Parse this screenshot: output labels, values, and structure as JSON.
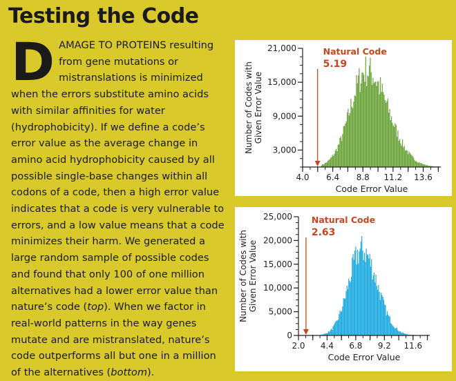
{
  "title": "Testing the Code",
  "article": {
    "dropcap": "D",
    "lead": "AMAGE TO PROTEINS resulting from gene mutations or mistranslations is minimized when the errors substitute amino acids with similar affinities for water (hydrophobicity). If we define a code’s error value as the average change in amino acid hydrophobicity caused by all possible single-base changes within all codons of a code, then a high error value indicates that a code is very vulnerable to errors, and a low value means that a code minimizes their harm. We generated a large random sample of possible codes and found that only 100 of one million alternatives had a lower error value than nature’s code (",
    "em1": "top",
    "mid": "). When we factor in real-world patterns in the way genes mutate and are mistranslated, nature’s code outperforms all but one in a million of the alternatives (",
    "em2": "bottom",
    "end": ")."
  },
  "colors": {
    "top_bars": "#6aa33a",
    "bottom_bars": "#1aa9df",
    "marker": "#c8461e"
  },
  "chart_data": [
    {
      "type": "bar",
      "xlabel": "Code Error Value",
      "ylabel": [
        "Number of Codes with",
        "Given Error Value"
      ],
      "xlim": [
        4.0,
        15.0
      ],
      "ylim": [
        0,
        21000
      ],
      "xticks": [
        "4.0",
        "6.4",
        "8.8",
        "11.2",
        "13.6"
      ],
      "xtick_values": [
        4.0,
        6.4,
        8.8,
        11.2,
        13.6
      ],
      "yticks": [
        "3,000",
        "9,000",
        "15,000",
        "21,000"
      ],
      "ytick_values": [
        3000,
        9000,
        15000,
        21000
      ],
      "distribution": {
        "shape": "approximately normal, slightly right-skewed",
        "peak_x": 9.1,
        "peak_y": 17500,
        "sd_left": 1.3,
        "sd_right": 1.7,
        "x_min": 5.5,
        "x_max": 14.8
      },
      "annotation": {
        "label": "Natural Code",
        "value": "5.19",
        "x": 5.19
      }
    },
    {
      "type": "bar",
      "xlabel": "Code Error Value",
      "ylabel": [
        "Number of Codes with",
        "Given Error Value"
      ],
      "xlim": [
        2.0,
        13.0
      ],
      "ylim": [
        0,
        25000
      ],
      "xticks": [
        "2.0",
        "4.4",
        "6.8",
        "9.2",
        "11.6"
      ],
      "xtick_values": [
        2.0,
        4.4,
        6.8,
        9.2,
        11.6
      ],
      "yticks": [
        "0",
        "5,000",
        "10,000",
        "15,000",
        "20,000",
        "25,000"
      ],
      "ytick_values": [
        0,
        5000,
        10000,
        15000,
        20000,
        25000
      ],
      "distribution": {
        "shape": "approximately normal",
        "peak_x": 7.3,
        "peak_y": 18500,
        "sd_left": 1.1,
        "sd_right": 1.3,
        "x_min": 3.6,
        "x_max": 12.6
      },
      "annotation": {
        "label": "Natural Code",
        "value": "2.63",
        "x": 2.63
      }
    }
  ]
}
